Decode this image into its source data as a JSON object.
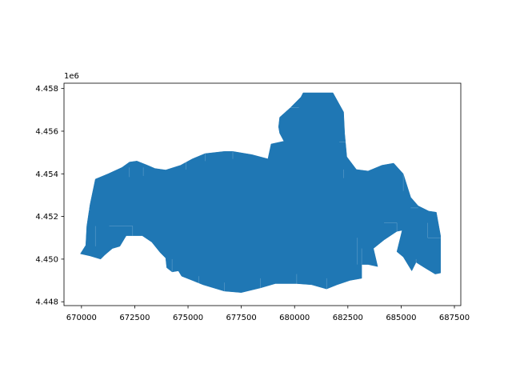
{
  "chart_data": {
    "type": "map",
    "geometry": "polygon",
    "fill_color": "#1f77b4",
    "edge_color": "#ffffff",
    "x_ticks": [
      670000,
      672500,
      675000,
      677500,
      680000,
      682500,
      685000,
      687500
    ],
    "x_tick_labels": [
      "670000",
      "672500",
      "675000",
      "677500",
      "680000",
      "682500",
      "685000",
      "687500"
    ],
    "y_ticks": [
      4.448,
      4.45,
      4.452,
      4.454,
      4.456,
      4.458
    ],
    "y_tick_labels": [
      "4.448",
      "4.450",
      "4.452",
      "4.454",
      "4.456",
      "4.458"
    ],
    "y_offset_label": "1e6",
    "xlim": [
      669180,
      687800
    ],
    "ylim": [
      4.44782,
      4.45825
    ],
    "grid": false,
    "outline": [
      [
        669950,
        4.45025
      ],
      [
        670200,
        4.45065
      ],
      [
        670250,
        4.45155
      ],
      [
        670400,
        4.45255
      ],
      [
        670650,
        4.45375
      ],
      [
        671250,
        4.454
      ],
      [
        671900,
        4.4543
      ],
      [
        672250,
        4.45455
      ],
      [
        672600,
        4.4546
      ],
      [
        673100,
        4.4544
      ],
      [
        673450,
        4.45425
      ],
      [
        673950,
        4.45418
      ],
      [
        674650,
        4.4544
      ],
      [
        675200,
        4.4547
      ],
      [
        675800,
        4.45495
      ],
      [
        676700,
        4.45505
      ],
      [
        677100,
        4.45505
      ],
      [
        678000,
        4.4549
      ],
      [
        678750,
        4.4547
      ],
      [
        678900,
        4.4554
      ],
      [
        679500,
        4.45553
      ],
      [
        679300,
        4.4559
      ],
      [
        679250,
        4.4562
      ],
      [
        679300,
        4.45665
      ],
      [
        679800,
        4.4571
      ],
      [
        680300,
        4.4576
      ],
      [
        680400,
        4.4578
      ],
      [
        681800,
        4.4578
      ],
      [
        682300,
        4.4569
      ],
      [
        682350,
        4.4559
      ],
      [
        682450,
        4.4548
      ],
      [
        682900,
        4.4542
      ],
      [
        683450,
        4.45413
      ],
      [
        684100,
        4.4544
      ],
      [
        684650,
        4.4545
      ],
      [
        685100,
        4.454
      ],
      [
        685450,
        4.4529
      ],
      [
        685800,
        4.4525
      ],
      [
        686300,
        4.45225
      ],
      [
        686650,
        4.4522
      ],
      [
        686850,
        4.4511
      ],
      [
        686850,
        4.44935
      ],
      [
        686600,
        4.4493
      ],
      [
        686100,
        4.4496
      ],
      [
        685700,
        4.44985
      ],
      [
        685500,
        4.44945
      ],
      [
        685100,
        4.4501
      ],
      [
        684800,
        4.45035
      ],
      [
        685050,
        4.45135
      ],
      [
        684800,
        4.4513
      ],
      [
        684200,
        4.4509
      ],
      [
        683700,
        4.4505
      ],
      [
        683900,
        4.44965
      ],
      [
        683450,
        4.44975
      ],
      [
        683150,
        4.44975
      ],
      [
        683150,
        4.4491
      ],
      [
        682600,
        4.449
      ],
      [
        682000,
        4.4488
      ],
      [
        681500,
        4.4486
      ],
      [
        680800,
        4.4488
      ],
      [
        680100,
        4.44885
      ],
      [
        679100,
        4.44885
      ],
      [
        678400,
        4.44865
      ],
      [
        677500,
        4.44843
      ],
      [
        676700,
        4.4485
      ],
      [
        675700,
        4.4488
      ],
      [
        675200,
        4.449
      ],
      [
        674700,
        4.4492
      ],
      [
        674550,
        4.44945
      ],
      [
        674250,
        4.4494
      ],
      [
        674000,
        4.4496
      ],
      [
        673950,
        4.45005
      ],
      [
        673700,
        4.4503
      ],
      [
        673300,
        4.4508
      ],
      [
        672850,
        4.4511
      ],
      [
        672100,
        4.4511
      ],
      [
        671800,
        4.4506
      ],
      [
        671450,
        4.4505
      ],
      [
        671100,
        4.4502
      ],
      [
        670900,
        4.45
      ],
      [
        670400,
        4.45015
      ],
      [
        669950,
        4.45025
      ]
    ],
    "interior_lines": [
      [
        [
          671300,
          4.45155
        ],
        [
          672400,
          4.45155
        ],
        [
          672400,
          4.4511
        ]
      ],
      [
        [
          670200,
          4.4523
        ],
        [
          670400,
          4.4523
        ]
      ],
      [
        [
          670650,
          4.45155
        ],
        [
          670650,
          4.4506
        ]
      ],
      [
        [
          672250,
          4.4543
        ],
        [
          672250,
          4.45385
        ]
      ],
      [
        [
          672900,
          4.4543
        ],
        [
          672900,
          4.4539
        ]
      ],
      [
        [
          674900,
          4.4546
        ],
        [
          674900,
          4.4542
        ]
      ],
      [
        [
          675800,
          4.45495
        ],
        [
          675800,
          4.4546
        ]
      ],
      [
        [
          677100,
          4.45505
        ],
        [
          677100,
          4.4547
        ]
      ],
      [
        [
          679800,
          4.4571
        ],
        [
          680200,
          4.4571
        ]
      ],
      [
        [
          682400,
          4.4555
        ],
        [
          682100,
          4.4555
        ]
      ],
      [
        [
          682300,
          4.4542
        ],
        [
          682300,
          4.4538
        ]
      ],
      [
        [
          682950,
          4.451
        ],
        [
          682950,
          4.44975
        ]
      ],
      [
        [
          683150,
          4.44975
        ],
        [
          683150,
          4.4505
        ]
      ],
      [
        [
          684200,
          4.4517
        ],
        [
          684800,
          4.4517
        ]
      ],
      [
        [
          684800,
          4.4517
        ],
        [
          684800,
          4.4513
        ]
      ],
      [
        [
          685100,
          4.454
        ],
        [
          685100,
          4.4532
        ]
      ],
      [
        [
          685450,
          4.4524
        ],
        [
          685800,
          4.4524
        ]
      ],
      [
        [
          686250,
          4.4517
        ],
        [
          686250,
          4.451
        ],
        [
          686850,
          4.451
        ]
      ],
      [
        [
          685700,
          4.45
        ],
        [
          685700,
          4.4494
        ]
      ],
      [
        [
          674250,
          4.4494
        ],
        [
          674250,
          4.45
        ]
      ],
      [
        [
          675500,
          4.4488
        ],
        [
          675500,
          4.4492
        ]
      ],
      [
        [
          676700,
          4.4485
        ],
        [
          676700,
          4.4489
        ]
      ],
      [
        [
          678400,
          4.44865
        ],
        [
          678400,
          4.4491
        ]
      ],
      [
        [
          681500,
          4.4486
        ],
        [
          681500,
          4.4491
        ]
      ],
      [
        [
          680100,
          4.44885
        ],
        [
          680100,
          4.4493
        ]
      ]
    ]
  }
}
